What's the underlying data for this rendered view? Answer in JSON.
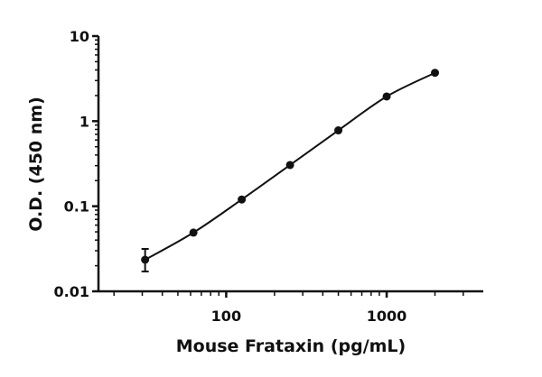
{
  "chart_data": {
    "type": "line",
    "title": "",
    "xlabel": "Mouse Frataxin (pg/mL)",
    "ylabel": "O.D. (450 nm)",
    "xscale": "log",
    "yscale": "log",
    "xlim": [
      16,
      4000
    ],
    "ylim": [
      0.01,
      10
    ],
    "xticks": [
      100,
      1000
    ],
    "xtick_labels": [
      "100",
      "1000"
    ],
    "yticks": [
      0.01,
      0.1,
      1,
      10
    ],
    "ytick_labels": [
      "0.01",
      "0.1",
      "1",
      "10"
    ],
    "grid": false,
    "legend": "none",
    "color": "#111111",
    "series": [
      {
        "x": [
          31.25,
          62.5,
          125,
          250,
          500,
          1000,
          2000
        ],
        "y": [
          0.0235,
          0.049,
          0.12,
          0.305,
          0.78,
          1.95,
          3.7
        ],
        "error_low": [
          0.0171,
          null,
          null,
          null,
          null,
          null,
          null
        ],
        "error_high": [
          0.0315,
          null,
          null,
          null,
          null,
          null,
          null
        ]
      }
    ]
  }
}
